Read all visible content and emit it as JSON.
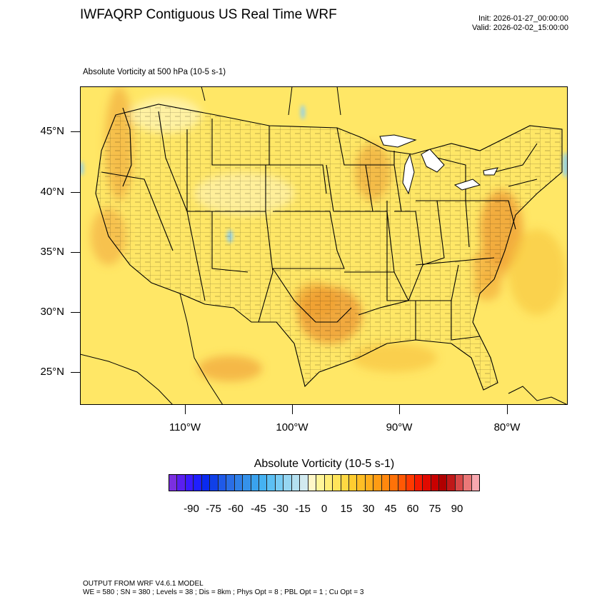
{
  "header": {
    "title": "IWFAQRP Contiguous US Real Time WRF",
    "init": "Init: 2026-01-27_00:00:00",
    "valid": "Valid: 2026-02-02_15:00:00"
  },
  "map": {
    "field_title": "Absolute Vorticity at 500 hPa   (10-5 s-1)",
    "lat_labels": [
      "45°N",
      "40°N",
      "35°N",
      "30°N",
      "25°N"
    ],
    "lon_labels": [
      "110°W",
      "100°W",
      "90°W",
      "80°W"
    ],
    "colors": {
      "background_field": "#FFE766",
      "land_light": "#FFF1A0",
      "positive_moderate": "#F7C43A",
      "positive_strong": "#EE9A32",
      "negative_light": "#8FD0EE",
      "borders": "#000000"
    }
  },
  "colorbar": {
    "title": "Absolute Vorticity  (10-5 s-1)",
    "labels": [
      "-90",
      "-75",
      "-60",
      "-45",
      "-30",
      "-15",
      "0",
      "15",
      "30",
      "45",
      "60",
      "75",
      "90"
    ],
    "colors": [
      "#7B2FE0",
      "#5A1FF0",
      "#3A1AFF",
      "#1F1FFF",
      "#0A2AF0",
      "#1040E8",
      "#1F5AE8",
      "#2A6EE6",
      "#2F80E8",
      "#3592EA",
      "#3AA2EE",
      "#45B2F2",
      "#5CC0F4",
      "#78CCF4",
      "#96D6F2",
      "#B4E0F0",
      "#D2EAF0",
      "#FFF7C8",
      "#FFF59A",
      "#FFEE78",
      "#FFE45A",
      "#FFD843",
      "#FFCC30",
      "#FFBE25",
      "#FFAE1C",
      "#FF9C14",
      "#FF880E",
      "#FF7208",
      "#FF5804",
      "#FF3A00",
      "#F51A00",
      "#E00A00",
      "#C80000",
      "#B00000",
      "#C01818",
      "#D84848",
      "#EA7878",
      "#F8A8B0"
    ]
  },
  "footer": {
    "line1": "OUTPUT FROM WRF V4.6.1 MODEL",
    "line2": "WE = 580 ; SN = 380 ; Levels = 38 ; Dis = 8km ; Phys Opt = 8 ; PBL Opt = 1 ; Cu Opt = 3"
  }
}
